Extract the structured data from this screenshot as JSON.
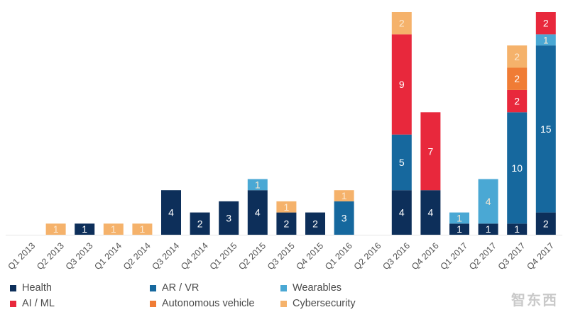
{
  "chart_data": {
    "type": "bar",
    "stacked": true,
    "categories": [
      "Q1 2013",
      "Q2 2013",
      "Q3 2013",
      "Q1 2014",
      "Q2 2014",
      "Q3 2014",
      "Q4 2014",
      "Q1 2015",
      "Q2 2015",
      "Q3 2015",
      "Q4 2015",
      "Q1 2016",
      "Q2 2016",
      "Q3 2016",
      "Q4 2016",
      "Q1 2017",
      "Q2 2017",
      "Q3 2017",
      "Q4 2017"
    ],
    "series": [
      {
        "name": "Health",
        "color": "#0d2f5a",
        "values": [
          0,
          0,
          1,
          0,
          0,
          4,
          2,
          3,
          4,
          2,
          2,
          0,
          0,
          4,
          4,
          1,
          1,
          1,
          2
        ]
      },
      {
        "name": "AR / VR",
        "color": "#16689e",
        "values": [
          0,
          0,
          0,
          0,
          0,
          0,
          0,
          0,
          0,
          0,
          0,
          3,
          0,
          5,
          0,
          0,
          0,
          10,
          15
        ]
      },
      {
        "name": "Wearables",
        "color": "#4aa8d4",
        "values": [
          0,
          0,
          0,
          0,
          0,
          0,
          0,
          0,
          1,
          0,
          0,
          0,
          0,
          0,
          0,
          1,
          4,
          0,
          1
        ]
      },
      {
        "name": "AI / ML",
        "color": "#e8283c",
        "values": [
          0,
          0,
          0,
          0,
          0,
          0,
          0,
          0,
          0,
          0,
          0,
          0,
          0,
          9,
          7,
          0,
          0,
          2,
          2
        ]
      },
      {
        "name": "Autonomous vehicle",
        "color": "#f07c35",
        "values": [
          0,
          0,
          0,
          0,
          0,
          0,
          0,
          0,
          0,
          0,
          0,
          0,
          0,
          0,
          0,
          0,
          0,
          2,
          0
        ]
      },
      {
        "name": "Cybersecurity",
        "color": "#f5b26b",
        "values": [
          0,
          1,
          0,
          1,
          1,
          0,
          0,
          0,
          0,
          1,
          0,
          1,
          0,
          2,
          0,
          0,
          0,
          2,
          0
        ]
      }
    ],
    "ylim": [
      0,
      20
    ],
    "grid": false,
    "legend_position": "bottom"
  },
  "watermark": "智东西"
}
